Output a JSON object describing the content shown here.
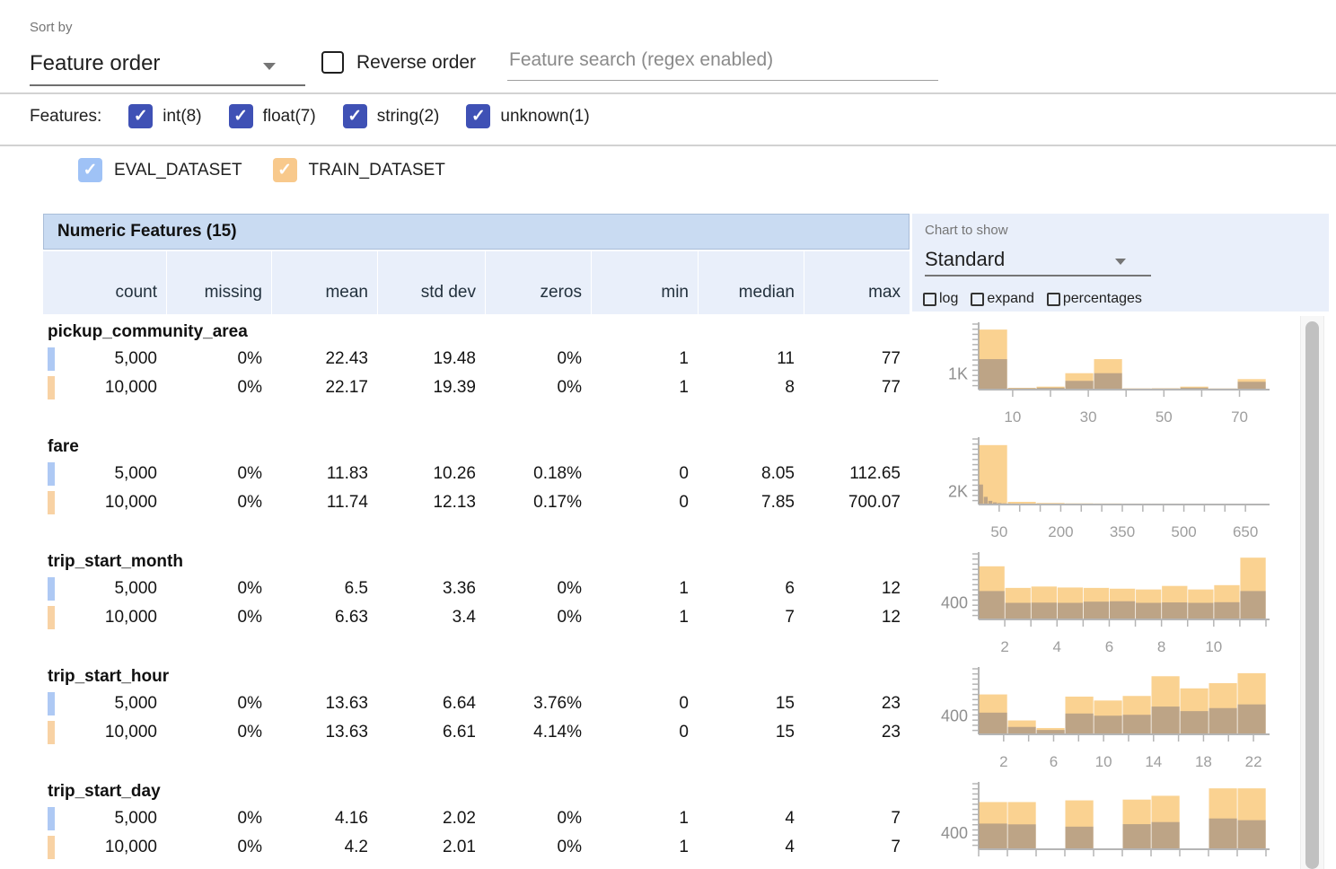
{
  "toolbar": {
    "sort_by_label": "Sort by",
    "sort_by_value": "Feature order",
    "reverse_order_label": "Reverse order",
    "search_placeholder": "Feature search (regex enabled)"
  },
  "features_filter": {
    "label": "Features:",
    "types": [
      {
        "label": "int(8)",
        "checked": true
      },
      {
        "label": "float(7)",
        "checked": true
      },
      {
        "label": "string(2)",
        "checked": true
      },
      {
        "label": "unknown(1)",
        "checked": true
      }
    ]
  },
  "datasets": [
    {
      "name": "EVAL_DATASET",
      "checked": true,
      "checkbox_color": "#9fc2f6",
      "swatch_color": "#aec9f4"
    },
    {
      "name": "TRAIN_DATASET",
      "checked": true,
      "checkbox_color": "#f8c98c",
      "swatch_color": "#f8d2a4"
    }
  ],
  "table": {
    "title": "Numeric Features (15)",
    "columns": [
      "count",
      "missing",
      "mean",
      "std dev",
      "zeros",
      "min",
      "median",
      "max"
    ]
  },
  "chart_controls": {
    "label": "Chart to show",
    "selected": "Standard",
    "options": [
      {
        "label": "log",
        "checked": false
      },
      {
        "label": "expand",
        "checked": false
      },
      {
        "label": "percentages",
        "checked": false
      }
    ]
  },
  "colors": {
    "filter_checkbox": "#3f51b5",
    "table_title_bg": "#c9dbf2",
    "table_header_bg": "#e9effa",
    "train_bar": "rgba(245,166,35,0.5)",
    "eval_bar": "rgba(90,90,115,0.38)",
    "axis": "#b5b5b5",
    "tick_label": "#9e9e9e"
  },
  "features": [
    {
      "name": "pickup_community_area",
      "rows": [
        {
          "dataset": "EVAL_DATASET",
          "count": "5,000",
          "missing": "0%",
          "mean": "22.43",
          "std_dev": "19.48",
          "zeros": "0%",
          "min": "1",
          "median": "11",
          "max": "77"
        },
        {
          "dataset": "TRAIN_DATASET",
          "count": "10,000",
          "missing": "0%",
          "mean": "22.17",
          "std_dev": "19.39",
          "zeros": "0%",
          "min": "1",
          "median": "8",
          "max": "77"
        }
      ],
      "histogram": {
        "type": "histogram-overlay",
        "xdomain": [
          1,
          77
        ],
        "ymax": 4250,
        "ylabel": {
          "text": "1K",
          "value": 1000
        },
        "xticks": [
          10,
          20,
          30,
          40,
          50,
          60,
          70
        ],
        "xlabels": [
          [
            10,
            "10"
          ],
          [
            30,
            "30"
          ],
          [
            50,
            "50"
          ],
          [
            70,
            "70"
          ]
        ],
        "train": [
          [
            1,
            8.6,
            4000
          ],
          [
            8.6,
            16.2,
            60
          ],
          [
            16.2,
            23.8,
            140
          ],
          [
            23.8,
            31.4,
            1050
          ],
          [
            31.4,
            39,
            2000
          ],
          [
            39,
            46.6,
            20
          ],
          [
            46.6,
            54.2,
            30
          ],
          [
            54.2,
            61.8,
            140
          ],
          [
            61.8,
            69.4,
            15
          ],
          [
            69.4,
            77,
            650
          ]
        ],
        "eval": [
          [
            1,
            8.6,
            2000
          ],
          [
            8.6,
            16.2,
            30
          ],
          [
            16.2,
            23.8,
            70
          ],
          [
            23.8,
            31.4,
            530
          ],
          [
            31.4,
            39,
            1050
          ],
          [
            39,
            46.6,
            10
          ],
          [
            46.6,
            54.2,
            15
          ],
          [
            54.2,
            61.8,
            70
          ],
          [
            61.8,
            69.4,
            8
          ],
          [
            69.4,
            77,
            470
          ]
        ]
      }
    },
    {
      "name": "fare",
      "rows": [
        {
          "dataset": "EVAL_DATASET",
          "count": "5,000",
          "missing": "0%",
          "mean": "11.83",
          "std_dev": "10.26",
          "zeros": "0.18%",
          "min": "0",
          "median": "8.05",
          "max": "112.65"
        },
        {
          "dataset": "TRAIN_DATASET",
          "count": "10,000",
          "missing": "0%",
          "mean": "11.74",
          "std_dev": "12.13",
          "zeros": "0.17%",
          "min": "0",
          "median": "7.85",
          "max": "700.07"
        }
      ],
      "histogram": {
        "type": "histogram-overlay",
        "xdomain": [
          0,
          700
        ],
        "ymax": 10200,
        "ylabel": {
          "text": "2K",
          "value": 2000
        },
        "xticks": [
          50,
          100,
          150,
          200,
          250,
          300,
          350,
          400,
          450,
          500,
          550,
          600,
          650
        ],
        "xlabels": [
          [
            50,
            "50"
          ],
          [
            200,
            "200"
          ],
          [
            350,
            "350"
          ],
          [
            500,
            "500"
          ],
          [
            650,
            "650"
          ]
        ],
        "train": [
          [
            0,
            70,
            9500
          ],
          [
            70,
            140,
            290
          ],
          [
            140,
            210,
            110
          ],
          [
            210,
            280,
            45
          ],
          [
            280,
            350,
            25
          ],
          [
            350,
            420,
            12
          ],
          [
            420,
            490,
            8
          ],
          [
            490,
            560,
            5
          ],
          [
            560,
            630,
            3
          ],
          [
            630,
            700,
            2
          ]
        ],
        "eval": [
          [
            0,
            11.3,
            3100
          ],
          [
            11.3,
            22.6,
            1100
          ],
          [
            22.6,
            33.9,
            450
          ],
          [
            33.9,
            45.2,
            200
          ],
          [
            45.2,
            56.5,
            100
          ],
          [
            56.5,
            67.8,
            50
          ],
          [
            67.8,
            79.1,
            25
          ],
          [
            79.1,
            90.4,
            12
          ],
          [
            90.4,
            101.7,
            6
          ],
          [
            101.7,
            112.65,
            3
          ]
        ]
      }
    },
    {
      "name": "trip_start_month",
      "rows": [
        {
          "dataset": "EVAL_DATASET",
          "count": "5,000",
          "missing": "0%",
          "mean": "6.5",
          "std_dev": "3.36",
          "zeros": "0%",
          "min": "1",
          "median": "6",
          "max": "12"
        },
        {
          "dataset": "TRAIN_DATASET",
          "count": "10,000",
          "missing": "0%",
          "mean": "6.63",
          "std_dev": "3.4",
          "zeros": "0%",
          "min": "1",
          "median": "7",
          "max": "12"
        }
      ],
      "histogram": {
        "type": "histogram-overlay",
        "xdomain": [
          1,
          12
        ],
        "ymax": 1600,
        "ylabel": {
          "text": "400",
          "value": 400
        },
        "xticks": [
          2,
          3,
          4,
          5,
          6,
          7,
          8,
          9,
          10,
          11,
          12
        ],
        "xlabels": [
          [
            2,
            "2"
          ],
          [
            4,
            "4"
          ],
          [
            6,
            "6"
          ],
          [
            8,
            "8"
          ],
          [
            10,
            "10"
          ]
        ],
        "train": [
          [
            1,
            2,
            1330
          ],
          [
            2,
            3,
            780
          ],
          [
            3,
            4,
            815
          ],
          [
            4,
            5,
            790
          ],
          [
            5,
            6,
            780
          ],
          [
            6,
            7,
            760
          ],
          [
            7,
            8,
            740
          ],
          [
            8,
            9,
            830
          ],
          [
            9,
            10,
            740
          ],
          [
            10,
            11,
            850
          ],
          [
            11,
            12,
            1550
          ]
        ],
        "eval": [
          [
            1,
            2,
            700
          ],
          [
            2,
            3,
            400
          ],
          [
            3,
            4,
            405
          ],
          [
            4,
            5,
            400
          ],
          [
            5,
            6,
            430
          ],
          [
            6,
            7,
            440
          ],
          [
            7,
            8,
            400
          ],
          [
            8,
            9,
            410
          ],
          [
            9,
            10,
            400
          ],
          [
            10,
            11,
            415
          ],
          [
            11,
            12,
            700
          ]
        ]
      }
    },
    {
      "name": "trip_start_hour",
      "rows": [
        {
          "dataset": "EVAL_DATASET",
          "count": "5,000",
          "missing": "0%",
          "mean": "13.63",
          "std_dev": "6.64",
          "zeros": "3.76%",
          "min": "0",
          "median": "15",
          "max": "23"
        },
        {
          "dataset": "TRAIN_DATASET",
          "count": "10,000",
          "missing": "0%",
          "mean": "13.63",
          "std_dev": "6.61",
          "zeros": "4.14%",
          "min": "0",
          "median": "15",
          "max": "23"
        }
      ],
      "histogram": {
        "type": "histogram-overlay",
        "xdomain": [
          0,
          23
        ],
        "ymax": 1450,
        "ylabel": {
          "text": "400",
          "value": 400
        },
        "xticks": [
          2,
          4,
          6,
          8,
          10,
          12,
          14,
          16,
          18,
          20,
          22
        ],
        "xlabels": [
          [
            2,
            "2"
          ],
          [
            6,
            "6"
          ],
          [
            10,
            "10"
          ],
          [
            14,
            "14"
          ],
          [
            18,
            "18"
          ],
          [
            22,
            "22"
          ]
        ],
        "train": [
          [
            0,
            2.3,
            900
          ],
          [
            2.3,
            4.6,
            300
          ],
          [
            4.6,
            6.9,
            125
          ],
          [
            6.9,
            9.2,
            850
          ],
          [
            9.2,
            11.5,
            760
          ],
          [
            11.5,
            13.8,
            865
          ],
          [
            13.8,
            16.1,
            1320
          ],
          [
            16.1,
            18.4,
            1040
          ],
          [
            18.4,
            20.7,
            1160
          ],
          [
            20.7,
            23,
            1390
          ]
        ],
        "eval": [
          [
            0,
            2.3,
            480
          ],
          [
            2.3,
            4.6,
            150
          ],
          [
            4.6,
            6.9,
            80
          ],
          [
            6.9,
            9.2,
            460
          ],
          [
            9.2,
            11.5,
            410
          ],
          [
            11.5,
            13.8,
            430
          ],
          [
            13.8,
            16.1,
            620
          ],
          [
            16.1,
            18.4,
            515
          ],
          [
            18.4,
            20.7,
            585
          ],
          [
            20.7,
            23,
            670
          ]
        ]
      }
    },
    {
      "name": "trip_start_day",
      "rows": [
        {
          "dataset": "EVAL_DATASET",
          "count": "5,000",
          "missing": "0%",
          "mean": "4.16",
          "std_dev": "2.02",
          "zeros": "0%",
          "min": "1",
          "median": "4",
          "max": "7"
        },
        {
          "dataset": "TRAIN_DATASET",
          "count": "10,000",
          "missing": "0%",
          "mean": "4.2",
          "std_dev": "2.01",
          "zeros": "0%",
          "min": "1",
          "median": "4",
          "max": "7"
        }
      ],
      "histogram": {
        "type": "histogram-overlay",
        "xdomain": [
          1,
          7
        ],
        "ymax": 1650,
        "ylabel": {
          "text": "400",
          "value": 400
        },
        "xticks": [
          1,
          1.6,
          2.2,
          2.8,
          3.4,
          4,
          4.6,
          5.2,
          5.8,
          6.4,
          7
        ],
        "xlabels": [],
        "train": [
          [
            1,
            1.6,
            1215
          ],
          [
            1.6,
            2.2,
            1215
          ],
          [
            2.2,
            2.8,
            0
          ],
          [
            2.8,
            3.4,
            1260
          ],
          [
            3.4,
            4,
            0
          ],
          [
            4,
            4.6,
            1280
          ],
          [
            4.6,
            5.2,
            1380
          ],
          [
            5.2,
            5.8,
            0
          ],
          [
            5.8,
            6.4,
            1575
          ],
          [
            6.4,
            7,
            1575
          ]
        ],
        "eval": [
          [
            1,
            1.6,
            650
          ],
          [
            1.6,
            2.2,
            630
          ],
          [
            2.2,
            2.8,
            0
          ],
          [
            2.8,
            3.4,
            570
          ],
          [
            3.4,
            4,
            0
          ],
          [
            4,
            4.6,
            635
          ],
          [
            4.6,
            5.2,
            690
          ],
          [
            5.2,
            5.8,
            0
          ],
          [
            5.8,
            6.4,
            785
          ],
          [
            6.4,
            7,
            740
          ]
        ]
      }
    }
  ]
}
